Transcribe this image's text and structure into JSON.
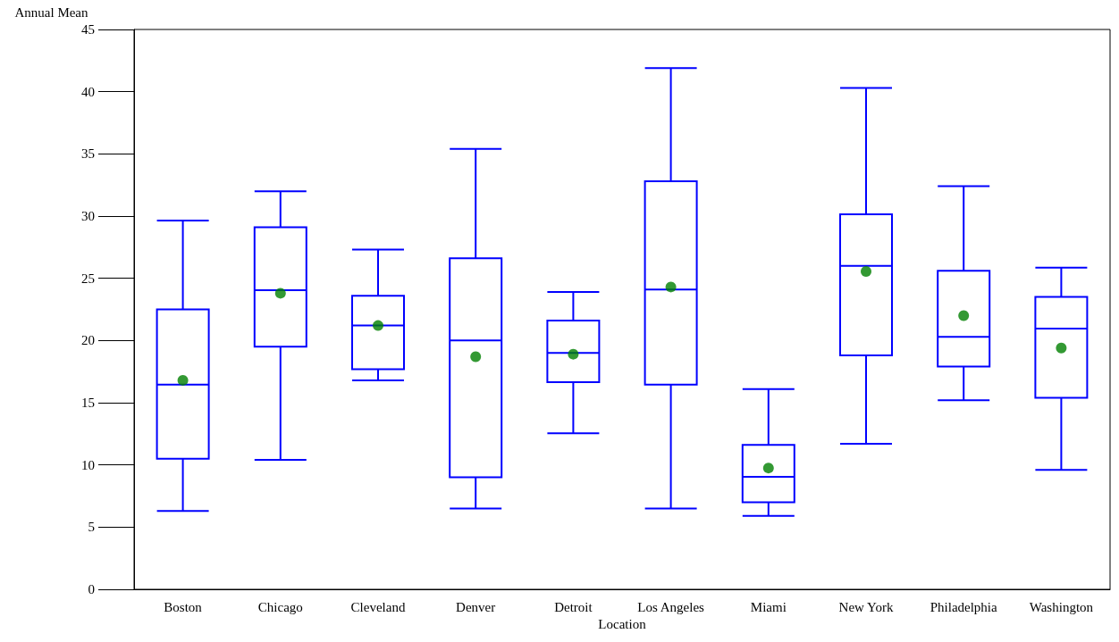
{
  "chart_data": {
    "type": "box",
    "xlabel": "Location",
    "ylabel": "Annual Mean",
    "categories": [
      "Boston",
      "Chicago",
      "Cleveland",
      "Denver",
      "Detroit",
      "Los Angeles",
      "Miami",
      "New York",
      "Philadelphia",
      "Washington"
    ],
    "boxes": [
      {
        "low": 6.3,
        "q1": 10.5,
        "median": 16.45,
        "q3": 22.5,
        "high": 29.65
      },
      {
        "low": 10.4,
        "q1": 19.5,
        "median": 24.05,
        "q3": 29.1,
        "high": 32.0
      },
      {
        "low": 16.8,
        "q1": 17.7,
        "median": 21.2,
        "q3": 23.6,
        "high": 27.3
      },
      {
        "low": 6.5,
        "q1": 9.0,
        "median": 20.0,
        "q3": 26.6,
        "high": 35.4
      },
      {
        "low": 12.55,
        "q1": 16.65,
        "median": 19.0,
        "q3": 21.6,
        "high": 23.9
      },
      {
        "low": 6.5,
        "q1": 16.45,
        "median": 24.1,
        "q3": 32.8,
        "high": 41.9
      },
      {
        "low": 5.9,
        "q1": 7.0,
        "median": 9.05,
        "q3": 11.6,
        "high": 16.1
      },
      {
        "low": 11.7,
        "q1": 18.8,
        "median": 26.0,
        "q3": 30.15,
        "high": 40.3
      },
      {
        "low": 15.2,
        "q1": 17.9,
        "median": 20.3,
        "q3": 25.6,
        "high": 32.4
      },
      {
        "low": 9.6,
        "q1": 15.4,
        "median": 20.95,
        "q3": 23.5,
        "high": 25.85
      }
    ],
    "color": "#0000ff",
    "series": [
      {
        "type": "scatter",
        "color": "#008000",
        "x": [
          "Boston",
          "Chicago",
          "Cleveland",
          "Denver",
          "Detroit",
          "Los Angeles",
          "Miami",
          "New York",
          "Philadelphia",
          "Washington"
        ],
        "values": [
          16.8,
          23.8,
          21.2,
          18.7,
          18.9,
          24.3,
          9.75,
          25.55,
          22.0,
          19.4
        ]
      }
    ],
    "marker": "circle",
    "ylim": [
      0,
      45
    ],
    "yticks": [
      0,
      5,
      10,
      15,
      20,
      25,
      30,
      35,
      40,
      45
    ],
    "grid": false
  }
}
